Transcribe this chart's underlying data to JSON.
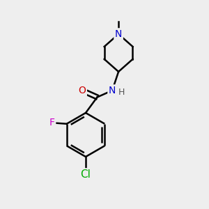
{
  "bg_color": "#eeeeee",
  "line_color": "#000000",
  "bond_width": 1.8,
  "atom_colors": {
    "N": "#0000cc",
    "O": "#cc0000",
    "F": "#cc00cc",
    "Cl": "#00aa00",
    "C": "#000000",
    "H": "#555555"
  },
  "font_size": 10,
  "figsize": [
    3.0,
    3.0
  ],
  "dpi": 100
}
